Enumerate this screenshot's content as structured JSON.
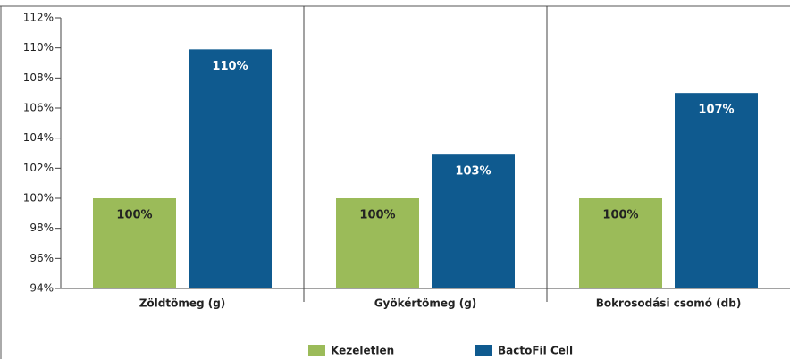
{
  "chart_data": {
    "type": "bar",
    "categories": [
      "Zöldtömeg (g)",
      "Gyökértömeg (g)",
      "Bokrosodási csomó (db)"
    ],
    "series": [
      {
        "name": "Kezeletlen",
        "color": "#9bbb59",
        "values": [
          100,
          100,
          100
        ],
        "value_labels": [
          "100%",
          "100%",
          "100%"
        ]
      },
      {
        "name": "BactoFil Cell",
        "color": "#0f5a8f",
        "values": [
          109.9,
          102.9,
          107
        ],
        "value_labels": [
          "110%",
          "103%",
          "107%"
        ]
      }
    ],
    "ylim": [
      94,
      112
    ],
    "yticks": [
      {
        "value": 94,
        "label": "94%"
      },
      {
        "value": 96,
        "label": "96%"
      },
      {
        "value": 98,
        "label": "98%"
      },
      {
        "value": 100,
        "label": "100%"
      },
      {
        "value": 102,
        "label": "102%"
      },
      {
        "value": 104,
        "label": "104%"
      },
      {
        "value": 106,
        "label": "106%"
      },
      {
        "value": 108,
        "label": "108%"
      },
      {
        "value": 110,
        "label": "110%"
      },
      {
        "value": 112,
        "label": "112%"
      }
    ],
    "legend": "bottom"
  }
}
